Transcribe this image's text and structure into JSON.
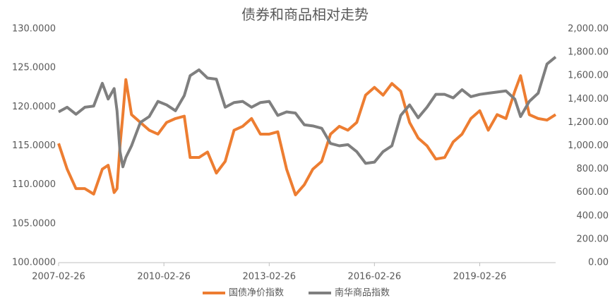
{
  "chart_data": {
    "type": "line",
    "title": "债券和商品相对走势",
    "x": [
      "2007-02-26",
      "2007-05-26",
      "2007-08-26",
      "2007-11-26",
      "2008-02-26",
      "2008-05-26",
      "2008-07-26",
      "2008-09-26",
      "2008-10-26",
      "2008-11-26",
      "2008-12-26",
      "2009-01-26",
      "2009-03-26",
      "2009-06-26",
      "2009-09-26",
      "2009-12-26",
      "2010-03-26",
      "2010-06-26",
      "2010-09-26",
      "2010-11-26",
      "2011-02-26",
      "2011-05-26",
      "2011-08-26",
      "2011-11-26",
      "2012-02-26",
      "2012-05-26",
      "2012-08-26",
      "2012-11-26",
      "2013-02-26",
      "2013-05-26",
      "2013-08-26",
      "2013-11-26",
      "2014-02-26",
      "2014-05-26",
      "2014-08-26",
      "2014-11-26",
      "2015-02-26",
      "2015-05-26",
      "2015-08-26",
      "2015-11-26",
      "2016-02-26",
      "2016-05-26",
      "2016-08-26",
      "2016-11-26",
      "2017-02-26",
      "2017-05-26",
      "2017-08-26",
      "2017-11-26",
      "2018-02-26",
      "2018-05-26",
      "2018-08-26",
      "2018-11-26",
      "2019-02-26",
      "2019-05-26",
      "2019-08-26",
      "2019-11-26",
      "2020-02-26",
      "2020-04-26",
      "2020-07-26",
      "2020-10-26",
      "2021-01-26",
      "2021-04-26"
    ],
    "series": [
      {
        "name": "国债净价指数",
        "color": "#ed7d31",
        "values": [
          115.3,
          112,
          109.5,
          109.5,
          108.8,
          112,
          112.5,
          109,
          109.5,
          115,
          119,
          123.5,
          119,
          118,
          117,
          116.5,
          118,
          118.5,
          118.8,
          113.5,
          113.5,
          114.2,
          111.5,
          113,
          117,
          117.5,
          118.5,
          116.5,
          116.5,
          116.8,
          112,
          108.7,
          110,
          112,
          113,
          116.5,
          117.5,
          117,
          118,
          121.5,
          122.5,
          121.5,
          123,
          122,
          118,
          116,
          115,
          113.3,
          113.5,
          115.5,
          116.5,
          118.5,
          119.5,
          117,
          119,
          118.5,
          122,
          124,
          119,
          118.5,
          118.3,
          119
        ]
      },
      {
        "name": "南华商品指数",
        "color": "#7f7f7f",
        "axis": "y2",
        "values": [
          1290,
          1330,
          1270,
          1330,
          1340,
          1535,
          1400,
          1490,
          1300,
          950,
          820,
          900,
          1000,
          1200,
          1250,
          1380,
          1350,
          1300,
          1430,
          1600,
          1650,
          1580,
          1570,
          1330,
          1370,
          1380,
          1330,
          1370,
          1380,
          1260,
          1290,
          1280,
          1180,
          1170,
          1150,
          1020,
          1000,
          1010,
          950,
          850,
          860,
          950,
          1000,
          1260,
          1350,
          1240,
          1330,
          1440,
          1440,
          1410,
          1480,
          1420,
          1440,
          1450,
          1460,
          1470,
          1400,
          1250,
          1380,
          1450,
          1700,
          1760
        ]
      }
    ],
    "xlim": [
      "2007-02-26",
      "2021-04-26"
    ],
    "xticks": [
      "2007-02-26",
      "2010-02-26",
      "2013-02-26",
      "2016-02-26",
      "2019-02-26"
    ],
    "ylim": [
      100,
      130
    ],
    "yticks": [
      {
        "value": 100,
        "label": "100.0000"
      },
      {
        "value": 105,
        "label": "105.0000"
      },
      {
        "value": 110,
        "label": "110.0000"
      },
      {
        "value": 115,
        "label": "115.0000"
      },
      {
        "value": 120,
        "label": "120.0000"
      },
      {
        "value": 125,
        "label": "125.0000"
      },
      {
        "value": 130,
        "label": "130.0000"
      }
    ],
    "y2lim": [
      0,
      2000
    ],
    "y2ticks": [
      {
        "value": 0,
        "label": "0.00"
      },
      {
        "value": 200,
        "label": "200.00"
      },
      {
        "value": 400,
        "label": "400.00"
      },
      {
        "value": 600,
        "label": "600.00"
      },
      {
        "value": 800,
        "label": "800.00"
      },
      {
        "value": 1000,
        "label": "1,000.00"
      },
      {
        "value": 1200,
        "label": "1,200.00"
      },
      {
        "value": 1400,
        "label": "1,400.00"
      },
      {
        "value": 1600,
        "label": "1,600.00"
      },
      {
        "value": 1800,
        "label": "1,800.00"
      },
      {
        "value": 2000,
        "label": "2,000.00"
      }
    ],
    "grid": false,
    "legend": "bottom"
  }
}
